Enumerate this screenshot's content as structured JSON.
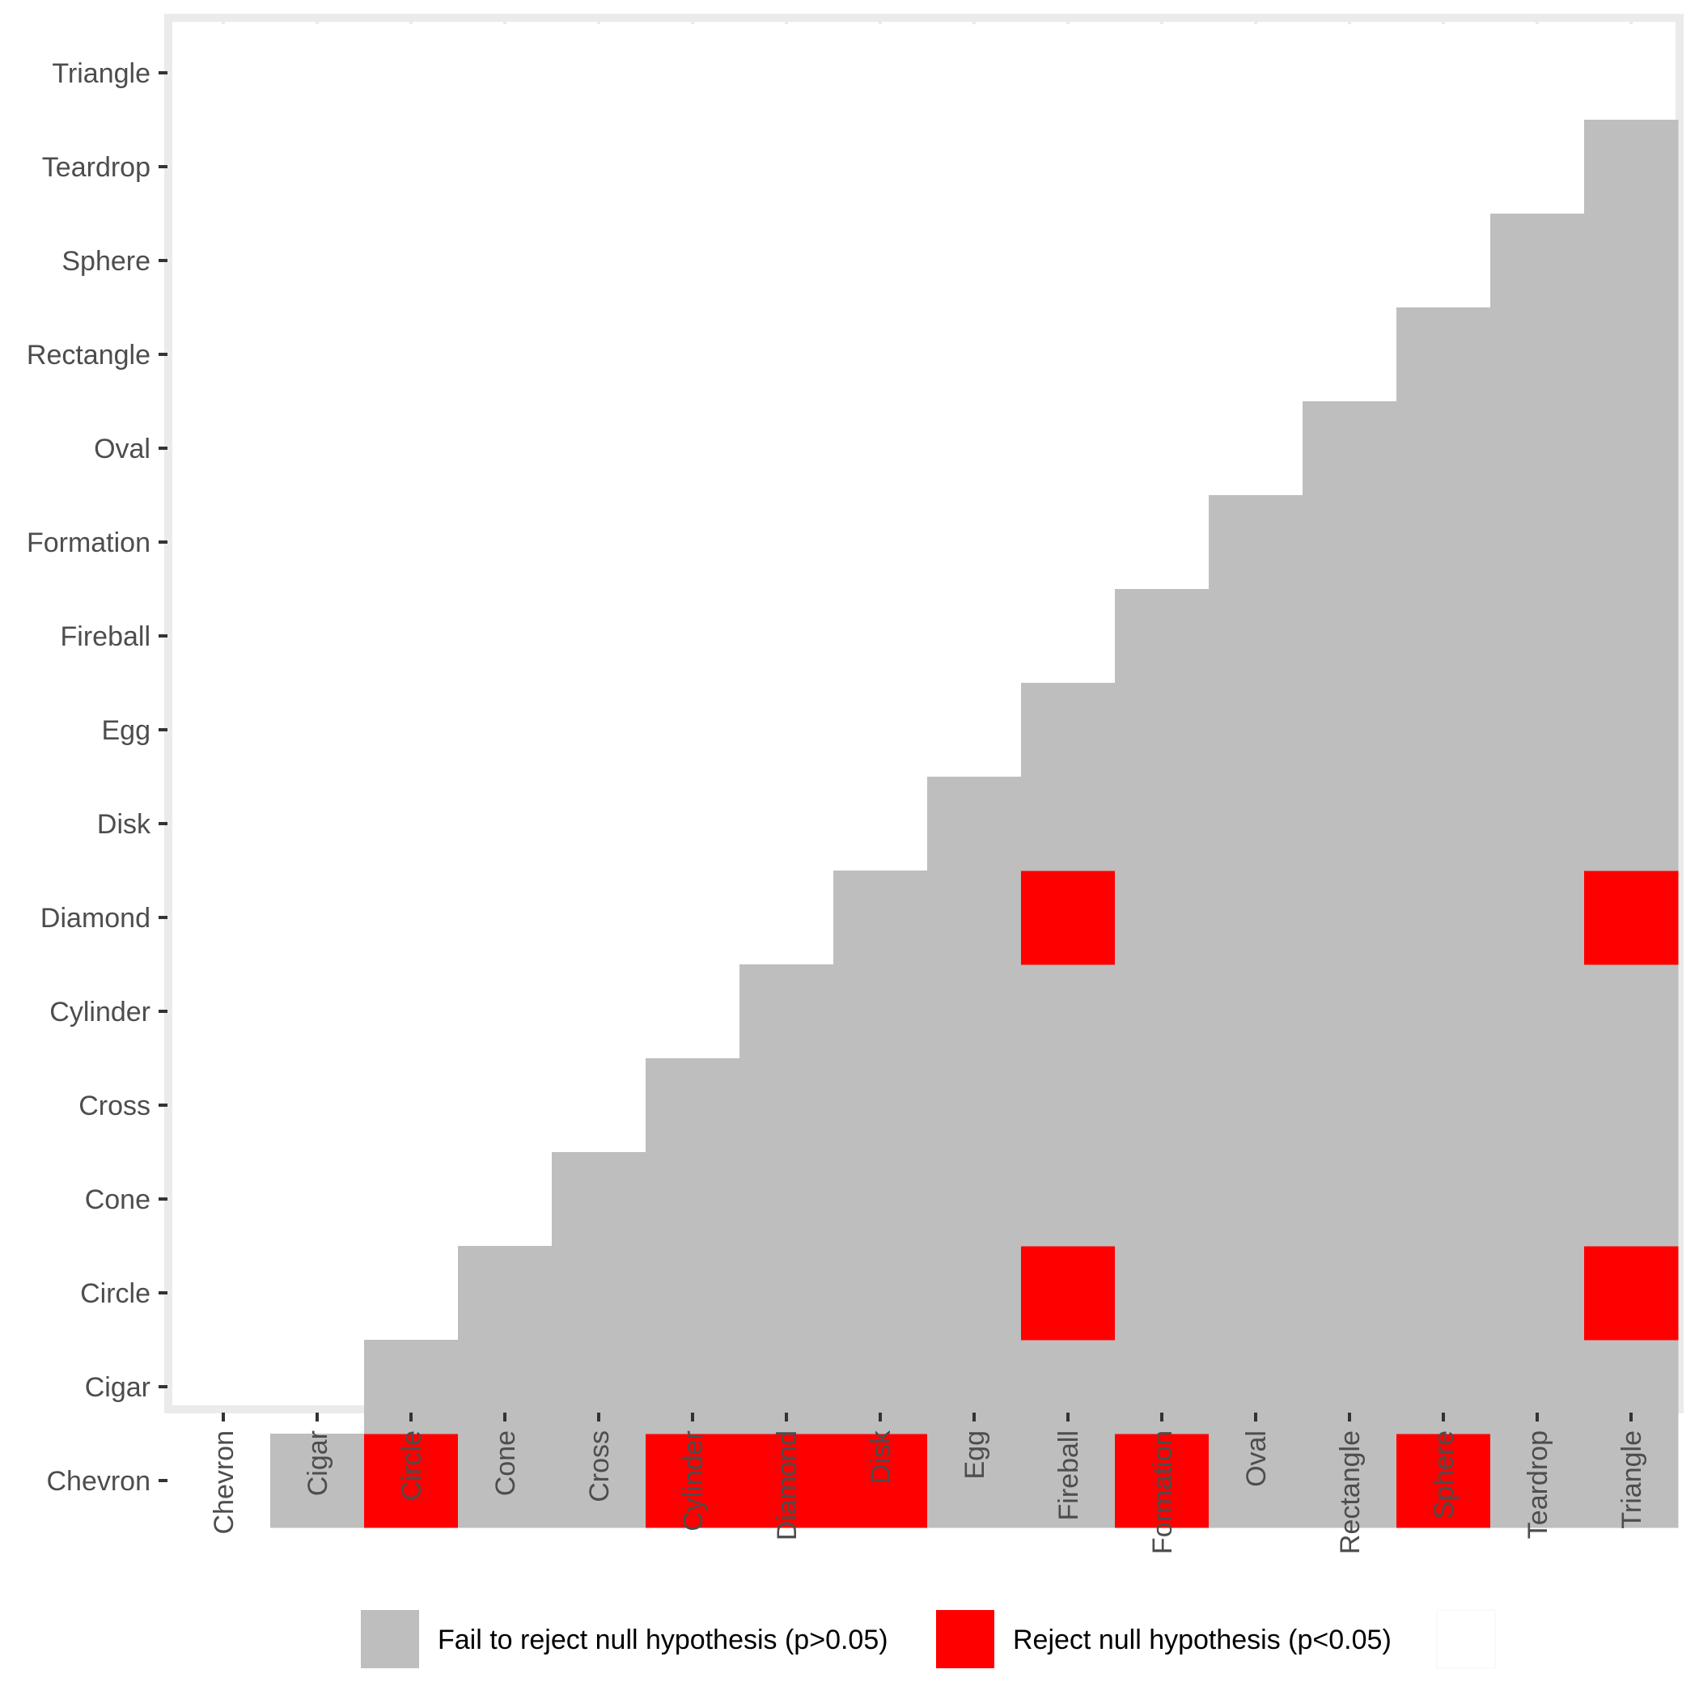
{
  "chart_data": {
    "type": "heatmap",
    "title": "",
    "xlabel": "",
    "ylabel": "",
    "x_categories": [
      "Chevron",
      "Cigar",
      "Circle",
      "Cone",
      "Cross",
      "Cylinder",
      "Diamond",
      "Disk",
      "Egg",
      "Fireball",
      "Formation",
      "Oval",
      "Rectangle",
      "Sphere",
      "Teardrop",
      "Triangle"
    ],
    "y_categories": [
      "Chevron",
      "Cigar",
      "Circle",
      "Cone",
      "Cross",
      "Cylinder",
      "Diamond",
      "Disk",
      "Egg",
      "Fireball",
      "Formation",
      "Oval",
      "Rectangle",
      "Sphere",
      "Teardrop",
      "Triangle"
    ],
    "cell_rule": "Cells shown where column index > row index; all other cells blank",
    "reject_cells": [
      {
        "x": "Circle",
        "y": "Chevron"
      },
      {
        "x": "Cylinder",
        "y": "Chevron"
      },
      {
        "x": "Diamond",
        "y": "Chevron"
      },
      {
        "x": "Disk",
        "y": "Chevron"
      },
      {
        "x": "Formation",
        "y": "Chevron"
      },
      {
        "x": "Sphere",
        "y": "Chevron"
      },
      {
        "x": "Fireball",
        "y": "Circle"
      },
      {
        "x": "Triangle",
        "y": "Circle"
      },
      {
        "x": "Fireball",
        "y": "Diamond"
      },
      {
        "x": "Triangle",
        "y": "Diamond"
      }
    ],
    "legend": {
      "placement": "bottom",
      "items": [
        {
          "label": "Fail to reject null hypothesis (p>0.05)",
          "color": "#bebebe"
        },
        {
          "label": "Reject null hypothesis (p<0.05)",
          "color": "#ff0000"
        },
        {
          "label": "",
          "color": "#ffffff"
        }
      ]
    },
    "grid": true,
    "colors": {
      "fail": "#bebebe",
      "reject": "#ff0000",
      "panel_border": "#ebebeb",
      "grid": "#ebebeb",
      "tick_label": "#4d4d4d",
      "tick": "#333333"
    }
  }
}
